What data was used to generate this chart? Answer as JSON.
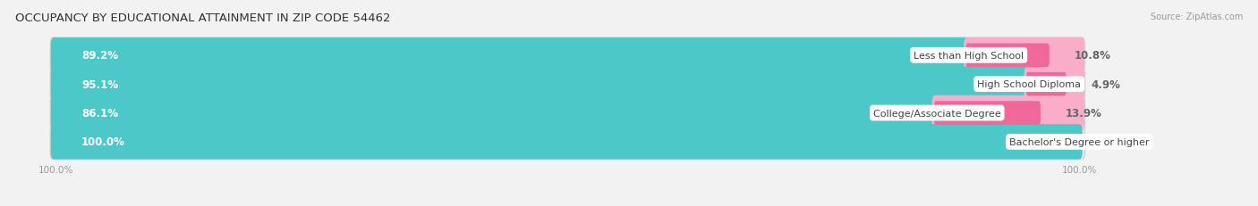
{
  "title": "OCCUPANCY BY EDUCATIONAL ATTAINMENT IN ZIP CODE 54462",
  "source": "Source: ZipAtlas.com",
  "categories": [
    "Less than High School",
    "High School Diploma",
    "College/Associate Degree",
    "Bachelor's Degree or higher"
  ],
  "owner_pct": [
    89.2,
    95.1,
    86.1,
    100.0
  ],
  "renter_pct": [
    10.8,
    4.9,
    13.9,
    0.0
  ],
  "owner_color": "#4dc8c8",
  "renter_color": "#f0679a",
  "renter_light_color": "#f9adc8",
  "bg_color": "#f2f2f2",
  "bar_bg_color": "#e8e8e8",
  "bar_shadow_color": "#d0d0d0",
  "title_fontsize": 9.5,
  "label_fontsize": 8.0,
  "pct_fontsize": 8.5,
  "tick_fontsize": 7.5,
  "source_fontsize": 7.0,
  "legend_fontsize": 8.0,
  "xlim_left": -3,
  "xlim_right": 115,
  "bar_total": 100
}
